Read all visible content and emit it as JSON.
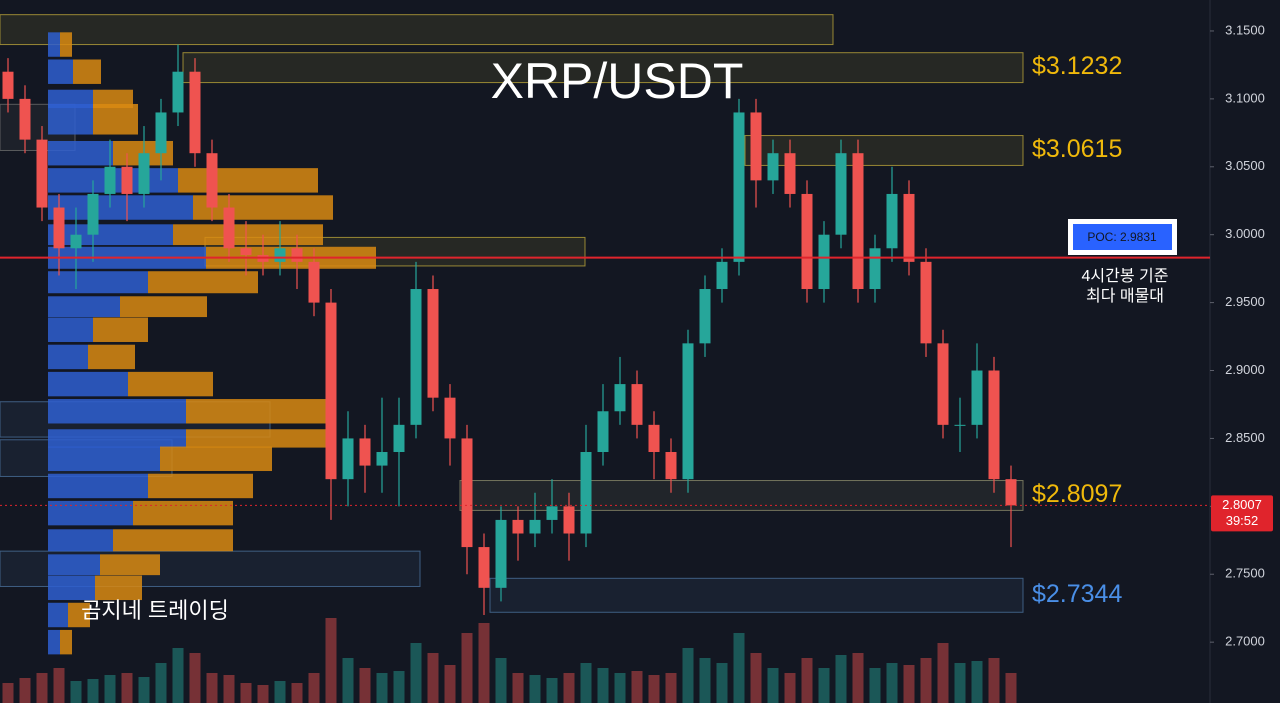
{
  "chart_data": {
    "type": "candlestick",
    "title": "XRP/USDT",
    "ylim": [
      2.6552,
      3.1728
    ],
    "yticks": [
      {
        "value": 3.15,
        "label": "3.1500"
      },
      {
        "value": 3.1,
        "label": "3.1000"
      },
      {
        "value": 3.05,
        "label": "3.0500"
      },
      {
        "value": 3.0,
        "label": "3.0000"
      },
      {
        "value": 2.95,
        "label": "2.9500"
      },
      {
        "value": 2.9,
        "label": "2.9000"
      },
      {
        "value": 2.85,
        "label": "2.8500"
      },
      {
        "value": 2.8,
        "label": "2.8000"
      },
      {
        "value": 2.75,
        "label": "2.7500"
      },
      {
        "value": 2.7,
        "label": "2.7000"
      }
    ],
    "grid": false,
    "up_color": "#26a69a",
    "down_color": "#ef5350",
    "ohlc": [
      [
        3.12,
        3.13,
        3.09,
        3.1
      ],
      [
        3.1,
        3.11,
        3.06,
        3.07
      ],
      [
        3.07,
        3.08,
        3.01,
        3.02
      ],
      [
        3.02,
        3.03,
        2.97,
        2.99
      ],
      [
        2.99,
        3.02,
        2.96,
        3.0
      ],
      [
        3.0,
        3.04,
        2.98,
        3.03
      ],
      [
        3.03,
        3.07,
        3.02,
        3.05
      ],
      [
        3.05,
        3.06,
        3.01,
        3.03
      ],
      [
        3.03,
        3.08,
        3.02,
        3.06
      ],
      [
        3.06,
        3.1,
        3.04,
        3.09
      ],
      [
        3.09,
        3.14,
        3.08,
        3.12
      ],
      [
        3.12,
        3.13,
        3.05,
        3.06
      ],
      [
        3.06,
        3.07,
        3.01,
        3.02
      ],
      [
        3.02,
        3.03,
        2.98,
        2.99
      ],
      [
        2.99,
        3.01,
        2.97,
        2.985
      ],
      [
        2.985,
        3.0,
        2.97,
        2.98
      ],
      [
        2.98,
        3.01,
        2.97,
        2.99
      ],
      [
        2.99,
        3.0,
        2.96,
        2.98
      ],
      [
        2.98,
        2.99,
        2.94,
        2.95
      ],
      [
        2.95,
        2.96,
        2.79,
        2.82
      ],
      [
        2.82,
        2.87,
        2.8,
        2.85
      ],
      [
        2.85,
        2.86,
        2.81,
        2.83
      ],
      [
        2.83,
        2.88,
        2.81,
        2.84
      ],
      [
        2.84,
        2.88,
        2.8,
        2.86
      ],
      [
        2.86,
        2.98,
        2.85,
        2.96
      ],
      [
        2.96,
        2.97,
        2.87,
        2.88
      ],
      [
        2.88,
        2.89,
        2.83,
        2.85
      ],
      [
        2.85,
        2.86,
        2.75,
        2.77
      ],
      [
        2.77,
        2.78,
        2.72,
        2.74
      ],
      [
        2.74,
        2.8,
        2.73,
        2.79
      ],
      [
        2.79,
        2.8,
        2.76,
        2.78
      ],
      [
        2.78,
        2.81,
        2.77,
        2.79
      ],
      [
        2.79,
        2.82,
        2.78,
        2.8
      ],
      [
        2.8,
        2.81,
        2.76,
        2.78
      ],
      [
        2.78,
        2.86,
        2.77,
        2.84
      ],
      [
        2.84,
        2.89,
        2.83,
        2.87
      ],
      [
        2.87,
        2.91,
        2.86,
        2.89
      ],
      [
        2.89,
        2.9,
        2.85,
        2.86
      ],
      [
        2.86,
        2.87,
        2.82,
        2.84
      ],
      [
        2.84,
        2.85,
        2.81,
        2.82
      ],
      [
        2.82,
        2.93,
        2.81,
        2.92
      ],
      [
        2.92,
        2.97,
        2.91,
        2.96
      ],
      [
        2.96,
        2.99,
        2.95,
        2.98
      ],
      [
        2.98,
        3.1,
        2.97,
        3.09
      ],
      [
        3.09,
        3.1,
        3.02,
        3.04
      ],
      [
        3.04,
        3.07,
        3.03,
        3.06
      ],
      [
        3.06,
        3.07,
        3.02,
        3.03
      ],
      [
        3.03,
        3.04,
        2.95,
        2.96
      ],
      [
        2.96,
        3.01,
        2.95,
        3.0
      ],
      [
        3.0,
        3.07,
        2.99,
        3.06
      ],
      [
        3.06,
        3.07,
        2.95,
        2.96
      ],
      [
        2.96,
        3.0,
        2.95,
        2.99
      ],
      [
        2.99,
        3.05,
        2.98,
        3.03
      ],
      [
        3.03,
        3.04,
        2.97,
        2.98
      ],
      [
        2.98,
        2.99,
        2.91,
        2.92
      ],
      [
        2.92,
        2.93,
        2.85,
        2.86
      ],
      [
        2.86,
        2.88,
        2.84,
        2.86
      ],
      [
        2.86,
        2.92,
        2.85,
        2.9
      ],
      [
        2.9,
        2.91,
        2.81,
        2.82
      ],
      [
        2.82,
        2.83,
        2.77,
        2.8007
      ]
    ],
    "volume": [
      20,
      25,
      30,
      35,
      22,
      24,
      28,
      30,
      26,
      40,
      55,
      50,
      30,
      28,
      20,
      18,
      22,
      20,
      30,
      85,
      45,
      35,
      30,
      32,
      60,
      50,
      38,
      70,
      80,
      45,
      30,
      28,
      25,
      30,
      40,
      35,
      30,
      32,
      28,
      30,
      55,
      45,
      40,
      70,
      50,
      35,
      30,
      45,
      35,
      48,
      50,
      35,
      40,
      38,
      45,
      60,
      40,
      42,
      45,
      30
    ],
    "volume_profile": {
      "buy_color": "#2f5fd0",
      "sell_color": "#d98a12",
      "prices": [
        3.14,
        3.12,
        3.1,
        3.085,
        3.06,
        3.04,
        3.02,
        3.0,
        2.983,
        2.965,
        2.947,
        2.93,
        2.91,
        2.89,
        2.87,
        2.85,
        2.835,
        2.815,
        2.795,
        2.775,
        2.757,
        2.74,
        2.72,
        2.7
      ],
      "buy": [
        12,
        25,
        45,
        45,
        65,
        130,
        145,
        125,
        158,
        100,
        72,
        45,
        40,
        80,
        138,
        138,
        112,
        100,
        85,
        65,
        52,
        47,
        20,
        12
      ],
      "sell": [
        12,
        28,
        40,
        45,
        60,
        140,
        140,
        150,
        170,
        110,
        87,
        55,
        47,
        85,
        145,
        145,
        112,
        105,
        100,
        120,
        60,
        47,
        22,
        12
      ]
    },
    "zones": [
      {
        "top": 3.162,
        "bottom": 3.14,
        "color": "#b8a23a"
      },
      {
        "top": 3.134,
        "bottom": 3.112,
        "color": "#b8a23a",
        "label": "$3.1232"
      },
      {
        "top": 3.073,
        "bottom": 3.051,
        "color": "#b8a23a",
        "label": "$3.0615"
      },
      {
        "top": 2.998,
        "bottom": 2.977,
        "color": "#b8a23a"
      },
      {
        "top": 2.819,
        "bottom": 2.797,
        "color": "#8a8a6a",
        "label": "$2.8097"
      },
      {
        "top": 2.747,
        "bottom": 2.722,
        "color": "#4a6f9a",
        "label": "$2.7344"
      },
      {
        "top": 2.877,
        "bottom": 2.851,
        "color": "#4a6f9a"
      },
      {
        "top": 2.849,
        "bottom": 2.822,
        "color": "#4a6f9a"
      },
      {
        "top": 2.767,
        "bottom": 2.741,
        "color": "#4a6f9a"
      },
      {
        "top": 3.096,
        "bottom": 3.062,
        "color": "#6a6a6a"
      }
    ],
    "poc": {
      "value": 2.9831,
      "label": "POC: 2.9831",
      "color": "#e0242c"
    },
    "poc_note": [
      "4시간봉 기준",
      "최다 매물대"
    ],
    "last_price": {
      "value": 2.8007,
      "label": "2.8007",
      "color": "#e0242c"
    },
    "countdown": "39:52",
    "watermark": "곰지네 트레이딩"
  }
}
